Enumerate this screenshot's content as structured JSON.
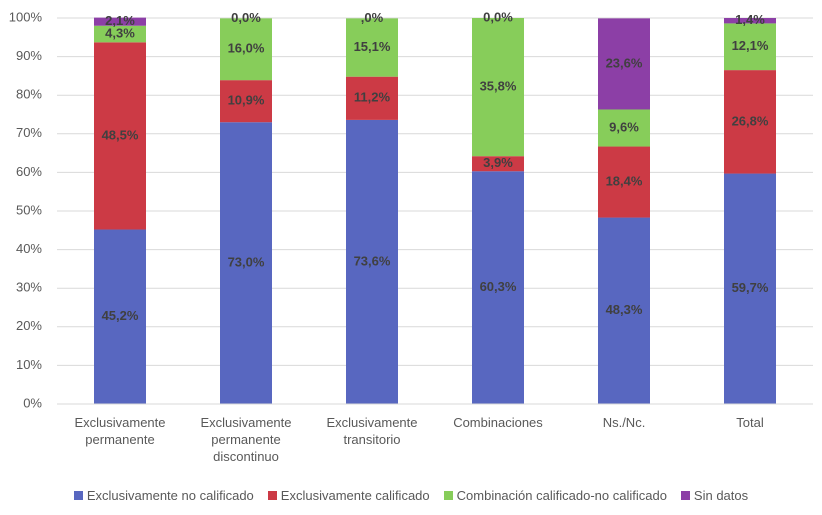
{
  "chart_data": {
    "type": "stacked_bar",
    "categories": [
      "Exclusivamente permanente",
      "Exclusivamente permanente discontinuo",
      "Exclusivamente transitorio",
      "Combinaciones",
      "Ns./Nc.",
      "Total"
    ],
    "series": [
      {
        "name": "Exclusivamente no calificado",
        "color": "#5867c0",
        "values": [
          45.2,
          73.0,
          73.6,
          60.3,
          48.3,
          59.7
        ],
        "value_labels": [
          "45,2%",
          "73,0%",
          "73,6%",
          "60,3%",
          "48,3%",
          "59,7%"
        ]
      },
      {
        "name": "Exclusivamente calificado",
        "color": "#cc3a45",
        "values": [
          48.5,
          10.9,
          11.2,
          3.9,
          18.4,
          26.8
        ],
        "value_labels": [
          "48,5%",
          "10,9%",
          "11,2%",
          "3,9%",
          "18,4%",
          "26,8%"
        ]
      },
      {
        "name": "Combinación calificado-no calificado",
        "color": "#87cd5a",
        "values": [
          4.3,
          16.0,
          15.1,
          35.8,
          9.6,
          12.1
        ],
        "value_labels": [
          "4,3%",
          "16,0%",
          "15,1%",
          "35,8%",
          "9,6%",
          "12,1%"
        ]
      },
      {
        "name": "Sin datos",
        "color": "#8c3fa6",
        "values": [
          2.1,
          0.0,
          0.0,
          0.0,
          23.6,
          1.4
        ],
        "value_labels": [
          "2,1%",
          "0,0%",
          ",0%",
          "0,0%",
          "23,6%",
          "1,4%"
        ]
      }
    ],
    "ylim": [
      0,
      100
    ],
    "yticks": [
      {
        "value": 0,
        "label": "0%"
      },
      {
        "value": 10,
        "label": "10%"
      },
      {
        "value": 20,
        "label": "20%"
      },
      {
        "value": 30,
        "label": "30%"
      },
      {
        "value": 40,
        "label": "40%"
      },
      {
        "value": 50,
        "label": "50%"
      },
      {
        "value": 60,
        "label": "60%"
      },
      {
        "value": 70,
        "label": "70%"
      },
      {
        "value": 80,
        "label": "80%"
      },
      {
        "value": 90,
        "label": "90%"
      },
      {
        "value": 100,
        "label": "100%"
      }
    ],
    "grid": true
  }
}
